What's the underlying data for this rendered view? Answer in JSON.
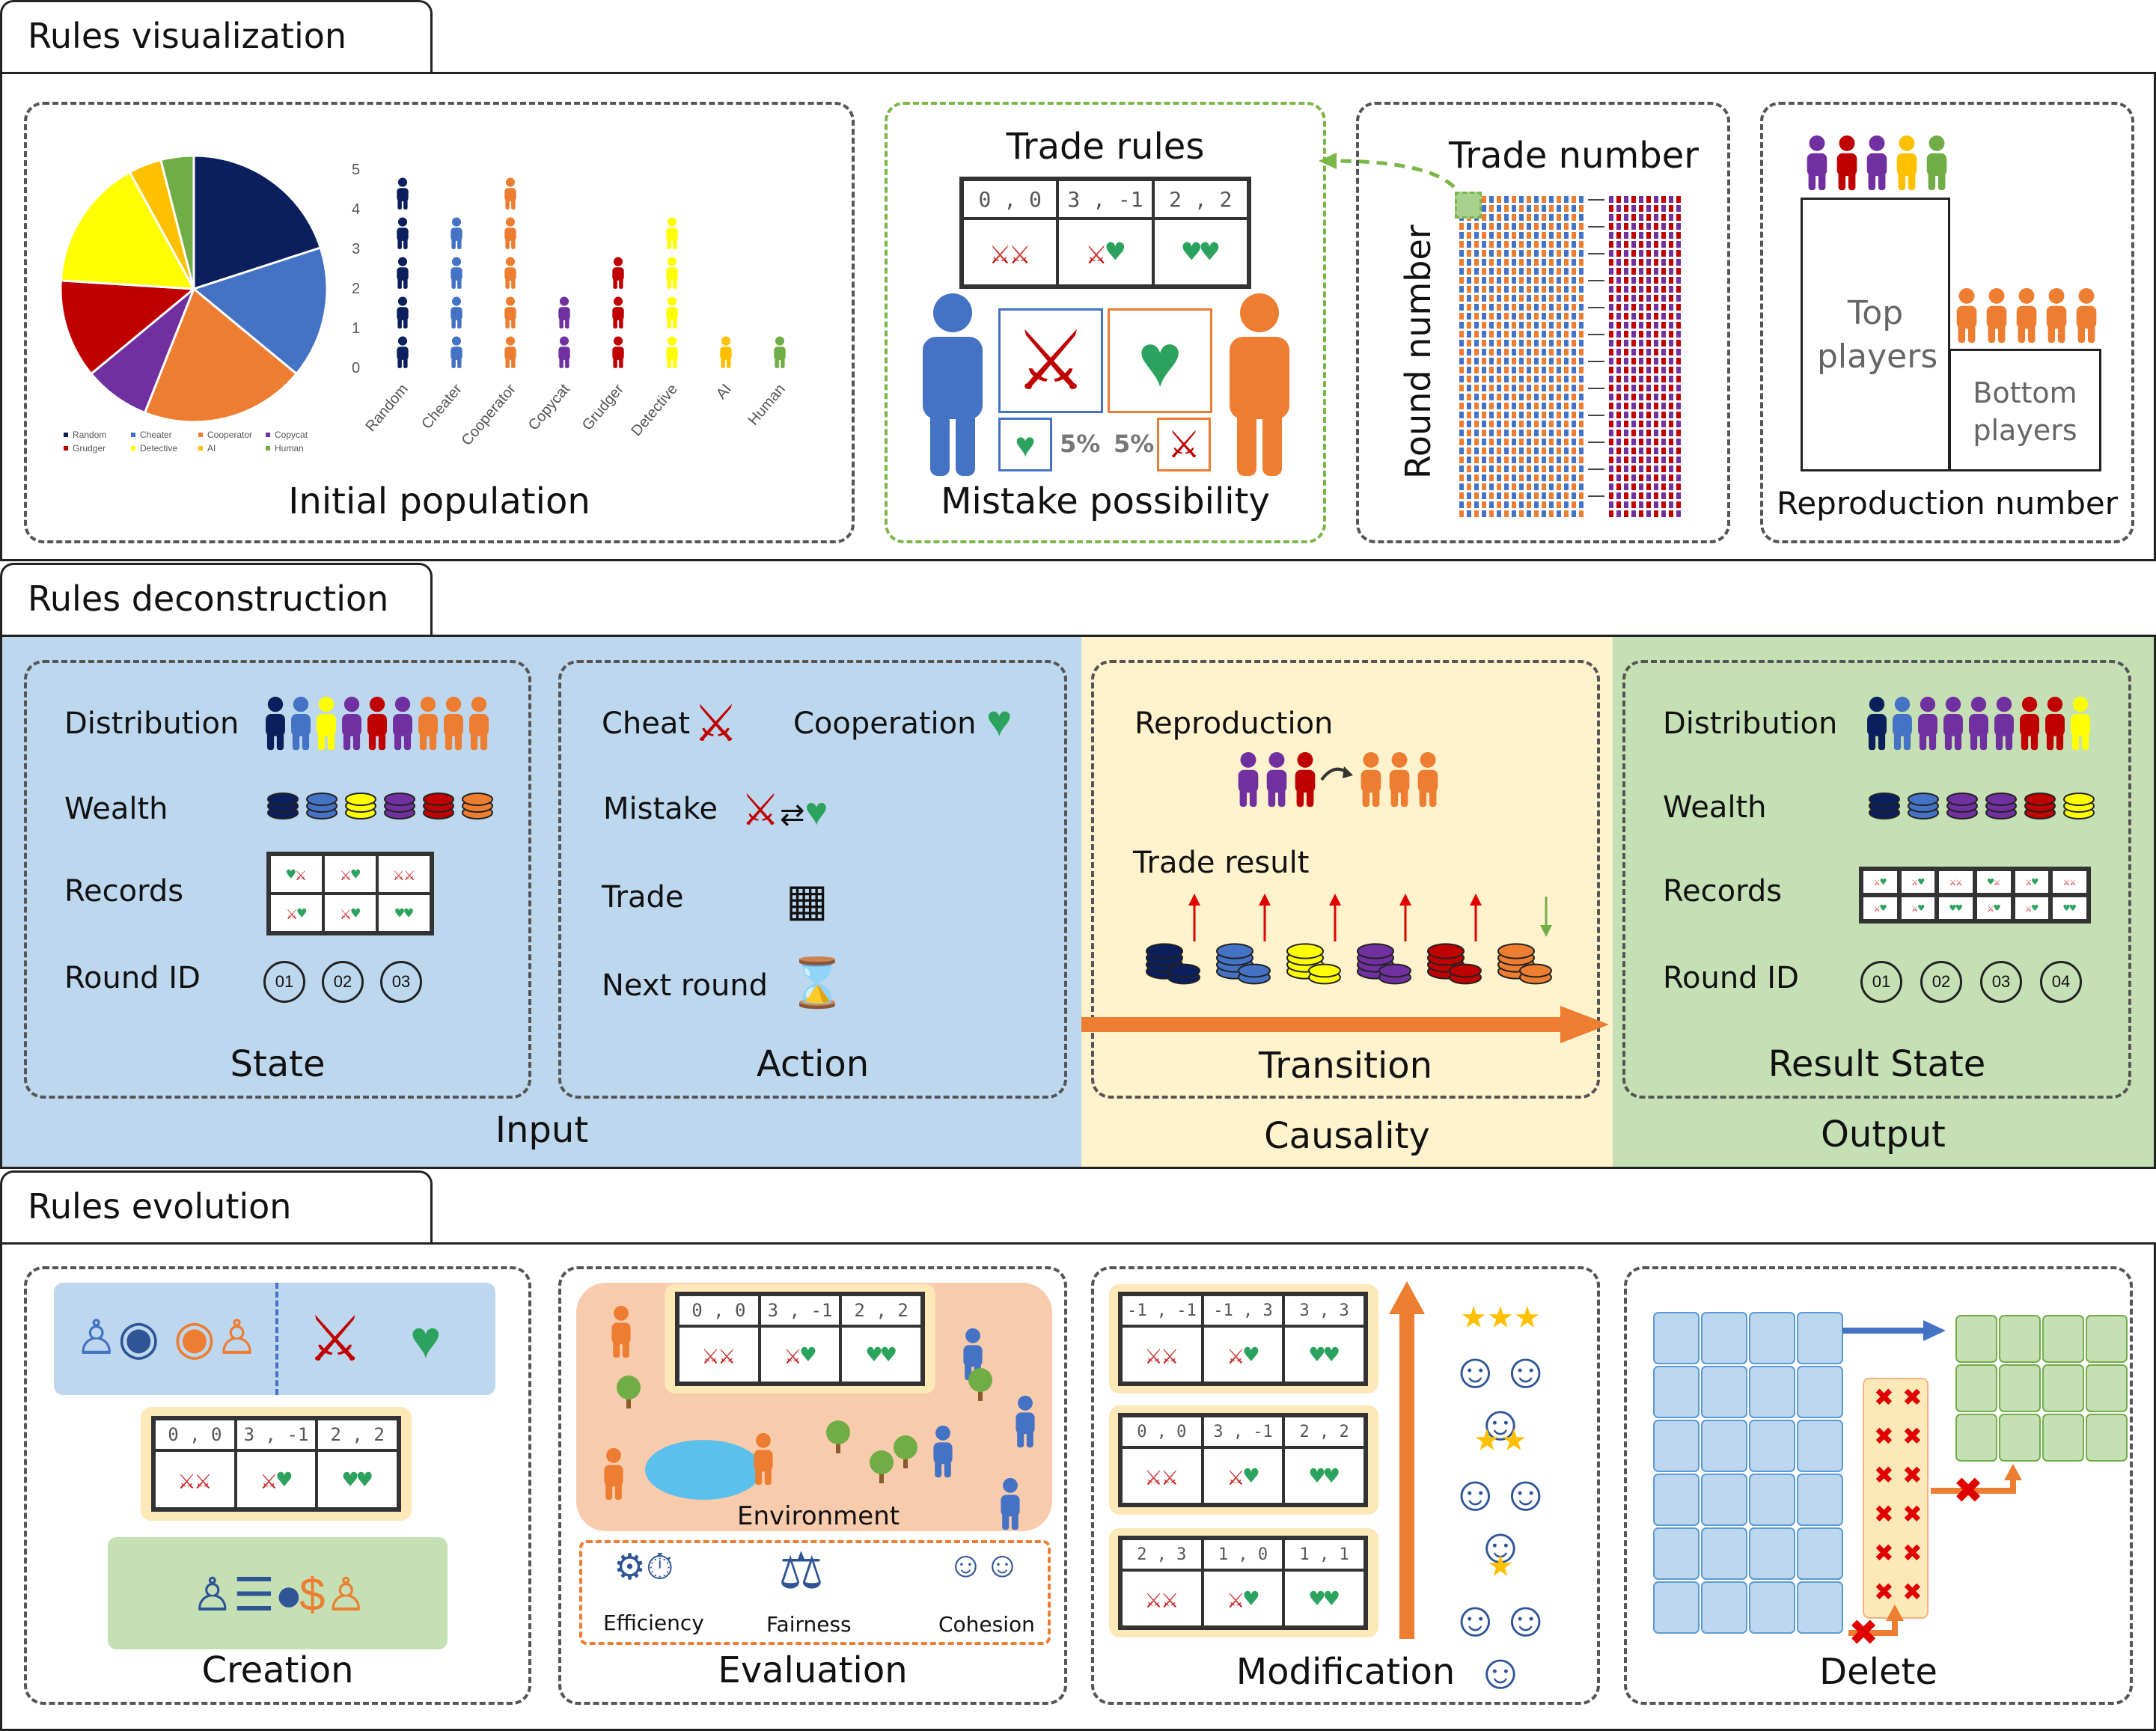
{
  "sections": {
    "visualization": "Rules visualization",
    "deconstruction": "Rules deconstruction",
    "evolution": "Rules evolution"
  },
  "visualization": {
    "initial_population": "Initial population",
    "trade_rules": "Trade rules",
    "mistake_possibility": "Mistake possibility",
    "mistake_left_pct": "5%",
    "mistake_right_pct": "5%",
    "trade_number": "Trade number",
    "round_number": "Round number",
    "reproduction_number": "Reproduction number",
    "top_players": "Top players",
    "bottom_players": "Bottom players",
    "payoffs": [
      "0 , 0",
      "3 , -1",
      "2 , 2"
    ]
  },
  "chart_data": {
    "type": "pie",
    "slices": [
      {
        "name": "Random",
        "value": 5,
        "color": "#0b1f5c"
      },
      {
        "name": "Cheater",
        "value": 4,
        "color": "#4472c4"
      },
      {
        "name": "Cooperator",
        "value": 5,
        "color": "#ed7d31"
      },
      {
        "name": "Copycat",
        "value": 2,
        "color": "#7030a0"
      },
      {
        "name": "Grudger",
        "value": 3,
        "color": "#c00000"
      },
      {
        "name": "Detective",
        "value": 4,
        "color": "#ffff00"
      },
      {
        "name": "AI",
        "value": 1,
        "color": "#ffc000"
      },
      {
        "name": "Human",
        "value": 1,
        "color": "#70ad47"
      }
    ],
    "bar_yticks": [
      "0",
      "1",
      "2",
      "3",
      "4",
      "5"
    ]
  },
  "deconstruction": {
    "state": {
      "distribution": "Distribution",
      "wealth": "Wealth",
      "records": "Records",
      "round_id": "Round ID",
      "rounds": [
        "01",
        "02",
        "03"
      ],
      "caption": "State"
    },
    "action": {
      "cheat": "Cheat",
      "cooperation": "Cooperation",
      "mistake": "Mistake",
      "trade": "Trade",
      "next_round": "Next round",
      "caption": "Action"
    },
    "transition": {
      "reproduction": "Reproduction",
      "trade_result": "Trade result",
      "caption": "Transition"
    },
    "result": {
      "distribution": "Distribution",
      "wealth": "Wealth",
      "records": "Records",
      "round_id": "Round ID",
      "rounds": [
        "01",
        "02",
        "03",
        "04"
      ],
      "caption": "Result State"
    },
    "input": "Input",
    "causality": "Causality",
    "output": "Output"
  },
  "evolution": {
    "creation": "Creation",
    "evaluation": "Evaluation",
    "environment": "Environment",
    "efficiency": "Efficiency",
    "fairness": "Fairness",
    "cohesion": "Cohesion",
    "modification": "Modification",
    "delete": "Delete",
    "mod_tables": [
      [
        "-1 , -1",
        "-1 , 3",
        "3 , 3"
      ],
      [
        "0 , 0",
        "3 , -1",
        "2 , 2"
      ],
      [
        "2 , 3",
        "1 , 0",
        "1 , 1"
      ]
    ]
  },
  "colors": {
    "input_bg": "#bdd7ee",
    "causality_bg": "#fff2cc",
    "output_bg": "#c5e0b4",
    "arrow": "#ed7d31",
    "cheat": "#c00000",
    "coop": "#2ca25f"
  }
}
